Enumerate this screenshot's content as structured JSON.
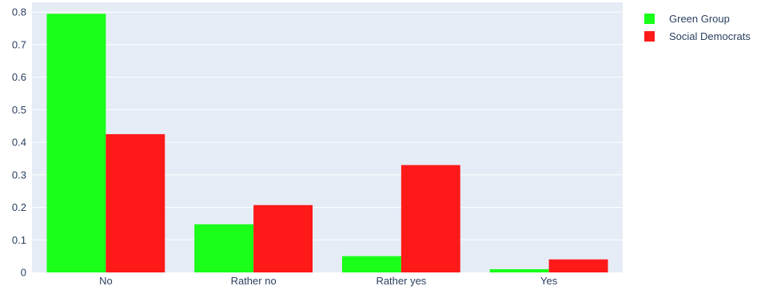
{
  "chart_data": {
    "type": "bar",
    "categories": [
      "No",
      "Rather no",
      "Rather yes",
      "Yes"
    ],
    "series": [
      {
        "name": "Green Group",
        "color": "#19ff19",
        "values": [
          0.795,
          0.148,
          0.05,
          0.01
        ]
      },
      {
        "name": "Social Democrats",
        "color": "#ff1919",
        "values": [
          0.425,
          0.207,
          0.33,
          0.04
        ]
      }
    ],
    "yticks": [
      "0",
      "0.1",
      "0.2",
      "0.3",
      "0.4",
      "0.5",
      "0.6",
      "0.7",
      "0.8"
    ],
    "ylim": [
      0,
      0.83
    ],
    "grid": true,
    "legend_position": "top-right",
    "plot_background": "#e5ecf6",
    "gridline_color": "#ffffff",
    "text_color": "#2a3f5f"
  }
}
